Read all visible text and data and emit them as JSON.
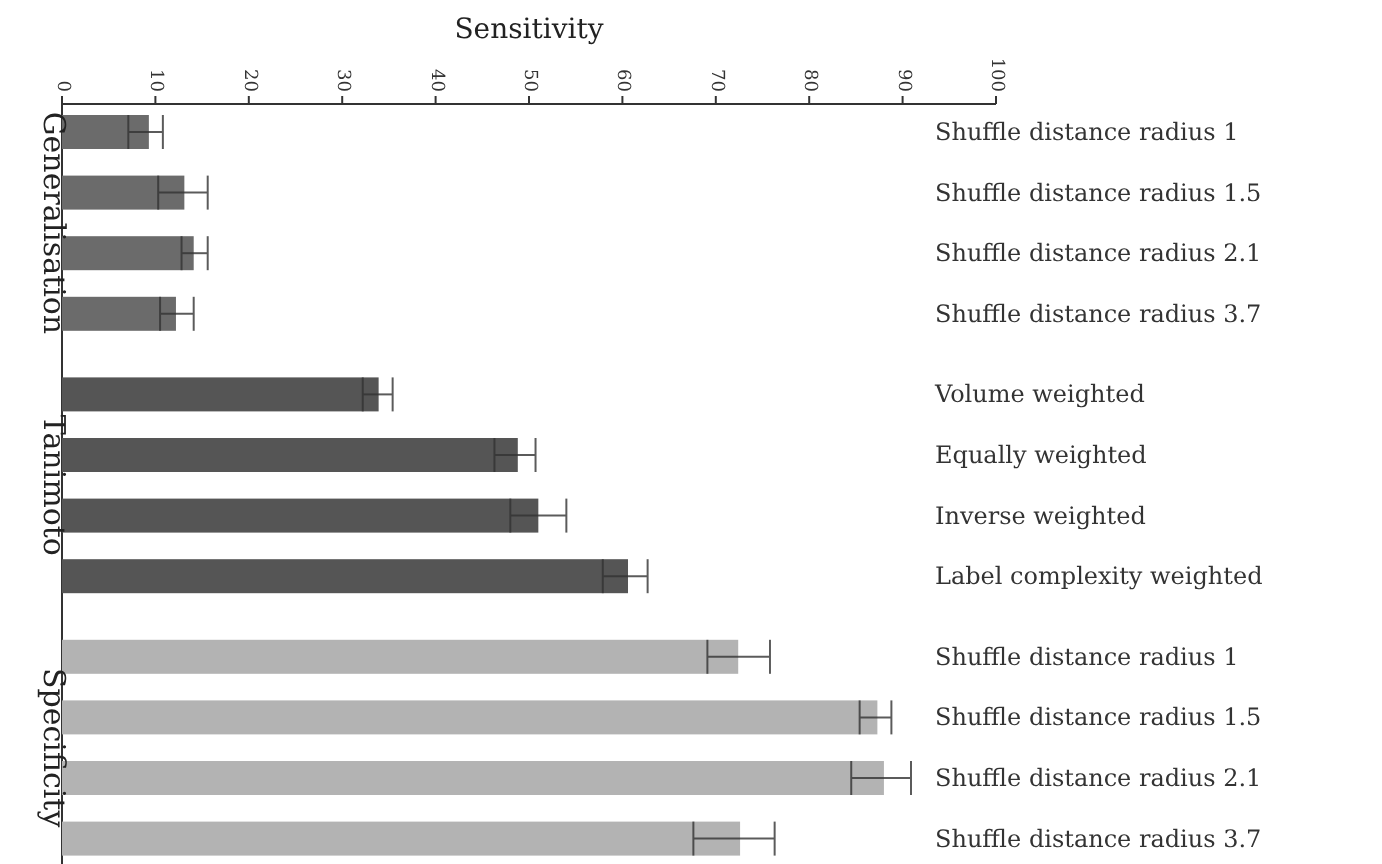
{
  "chart_data": {
    "type": "bar",
    "orientation": "horizontal",
    "xlabel": "Sensitivity",
    "xlim": [
      0,
      100
    ],
    "xticks": [
      0,
      10,
      20,
      30,
      40,
      50,
      60,
      70,
      80,
      90,
      100
    ],
    "grid": false,
    "categories": [
      "Shuffle distance radius 1",
      "Shuffle distance radius 1.5",
      "Shuffle distance radius 2.1",
      "Shuffle distance radius 3.7",
      "Volume weighted",
      "Equally weighted",
      "Inverse weighted",
      "Label complexity weighted",
      "Shuffle distance radius 1",
      "Shuffle distance radius 1.5",
      "Shuffle distance radius 2.1",
      "Shuffle distance radius 3.7"
    ],
    "series": [
      {
        "name": "Generalisation",
        "color": "#6b6b6b",
        "values": [
          9.3,
          13.1,
          14.1,
          12.2,
          null,
          null,
          null,
          null,
          null,
          null,
          null,
          null
        ],
        "errors": [
          [
            7.1,
            10.8
          ],
          [
            10.3,
            15.6
          ],
          [
            12.8,
            15.6
          ],
          [
            10.5,
            14.1
          ],
          null,
          null,
          null,
          null,
          null,
          null,
          null,
          null
        ]
      },
      {
        "name": "Tanimoto",
        "color": "#555555",
        "values": [
          null,
          null,
          null,
          null,
          33.9,
          48.8,
          51.0,
          60.6,
          null,
          null,
          null,
          null
        ],
        "errors": [
          null,
          null,
          null,
          null,
          [
            32.2,
            35.4
          ],
          [
            46.3,
            50.7
          ],
          [
            48.0,
            54.0
          ],
          [
            57.9,
            62.7
          ],
          null,
          null,
          null,
          null
        ]
      },
      {
        "name": "Specificity",
        "color": "#b3b3b3",
        "values": [
          null,
          null,
          null,
          null,
          null,
          null,
          null,
          null,
          72.4,
          87.3,
          88.0,
          72.6
        ],
        "errors": [
          null,
          null,
          null,
          null,
          null,
          null,
          null,
          null,
          [
            69.1,
            75.8
          ],
          [
            85.4,
            88.8
          ],
          [
            84.5,
            90.9
          ],
          [
            67.6,
            76.3
          ]
        ]
      }
    ]
  }
}
